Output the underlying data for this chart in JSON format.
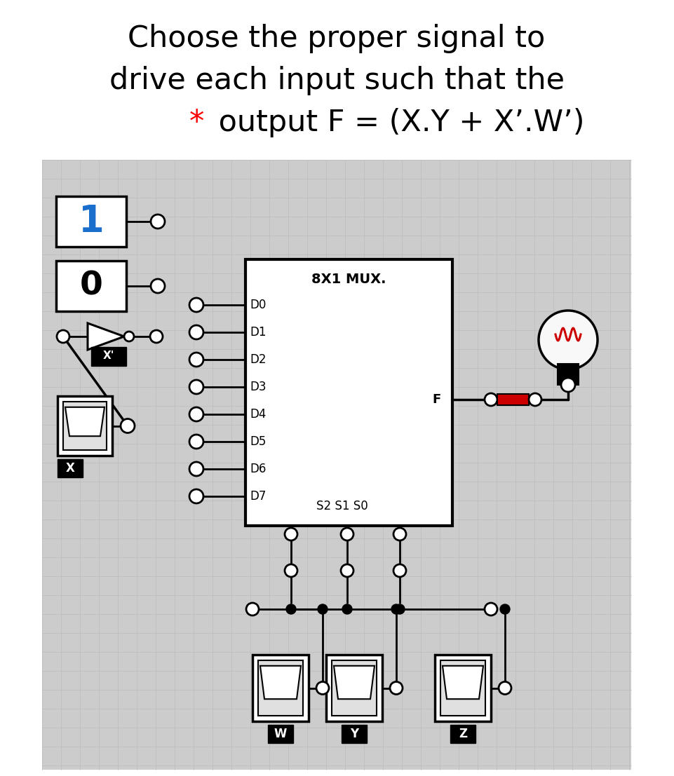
{
  "title_line1": "Choose the proper signal to",
  "title_line2": "drive each input such that the",
  "title_line3_star": "*",
  "title_line3_rest": " output F = (X.Y + X’.W’)",
  "bg_color": "#cccccc",
  "grid_color": "#bbbbbb",
  "mux_label": "8X1 MUX.",
  "data_inputs": [
    "D0",
    "D1",
    "D2",
    "D3",
    "D4",
    "D5",
    "D6",
    "D7"
  ],
  "sel_labels": [
    "S2",
    "S1",
    "S0"
  ],
  "output_label": "F",
  "switch_labels": [
    "W",
    "Y",
    "Z"
  ],
  "one_color": "#1a6fcc",
  "red_color": "#cc0000",
  "black": "#000000",
  "white": "#ffffff",
  "light_gray": "#e8e8e8"
}
